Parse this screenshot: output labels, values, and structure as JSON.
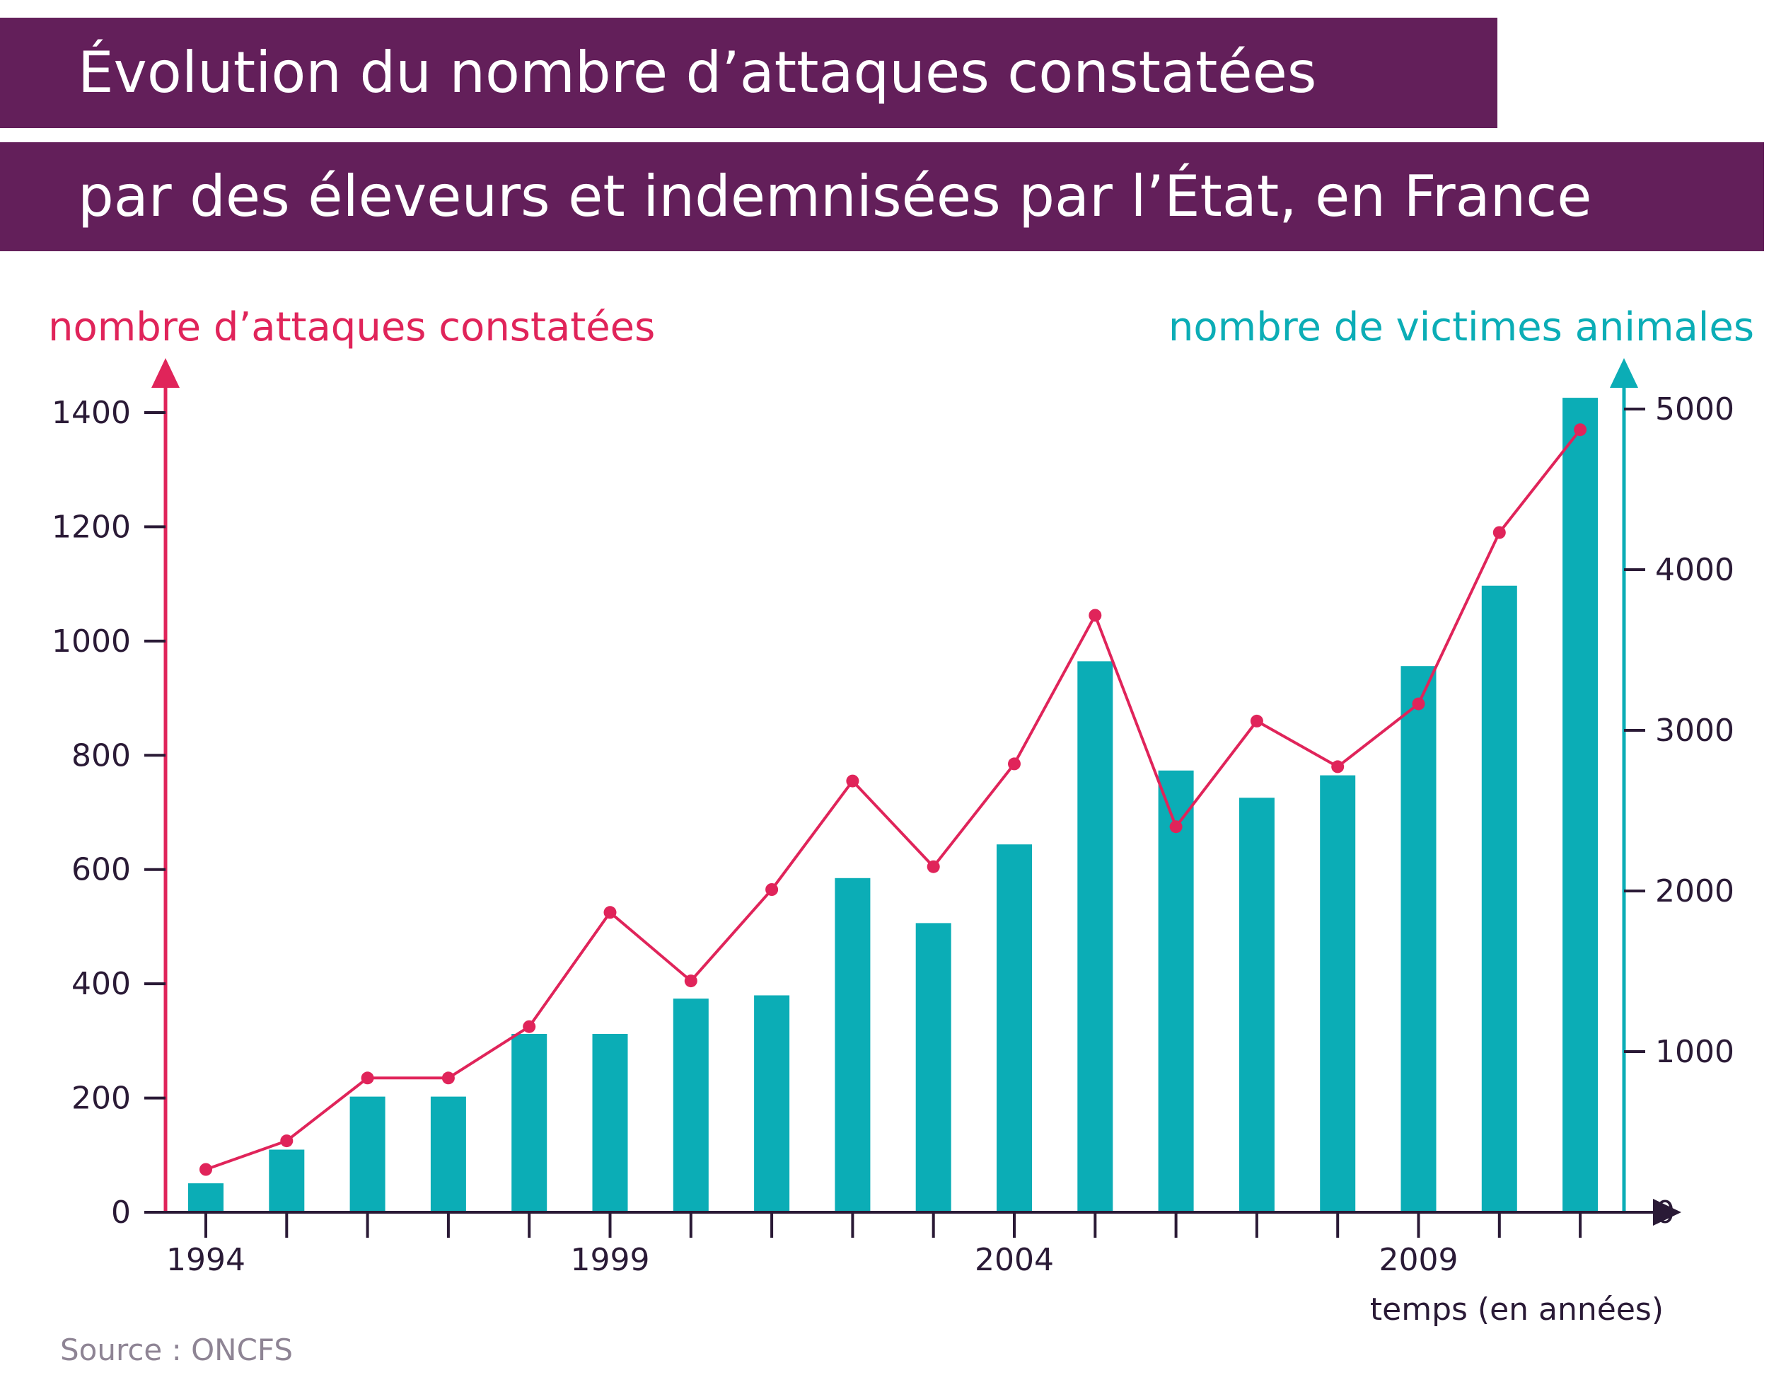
{
  "title": {
    "line1": "Évolution du nombre d’attaques constatées",
    "line2": "par des éleveurs et indemnisées par l’État, en France"
  },
  "colors": {
    "title_band": "#631f5a",
    "attacks": "#e0245a",
    "victims": "#0badb6",
    "axis_dark": "#2a1a36",
    "source": "#8e8494"
  },
  "source": "Source : ONCFS",
  "chart_data": {
    "type": "bar",
    "combo": "bars = nombre de victimes animales (right axis); line with markers = nombre d’attaques constatées (left axis)",
    "x": [
      1994,
      1995,
      1996,
      1997,
      1998,
      1999,
      2000,
      2001,
      2002,
      2003,
      2004,
      2005,
      2006,
      2007,
      2008,
      2009,
      2010,
      2011
    ],
    "x_tick_labels": [
      "1994",
      "1999",
      "2004",
      "2009"
    ],
    "xlabel": "temps (en années)",
    "ylabel_left": "nombre d’attaques constatées",
    "ylabel_right": "nombre de victimes animales",
    "ylim_left": [
      0,
      1400
    ],
    "ylim_right": [
      0,
      5000
    ],
    "yticks_left": [
      0,
      200,
      400,
      600,
      800,
      1000,
      1200,
      1400
    ],
    "yticks_right": [
      0,
      1000,
      2000,
      3000,
      4000,
      5000
    ],
    "series": [
      {
        "name": "nombre de victimes animales",
        "type": "bar",
        "axis": "right",
        "values": [
          180,
          390,
          720,
          720,
          1110,
          1110,
          1330,
          1350,
          2080,
          1800,
          2290,
          3430,
          2750,
          2580,
          2720,
          3400,
          3900,
          5070
        ]
      },
      {
        "name": "nombre d’attaques constatées",
        "type": "line",
        "axis": "left",
        "values": [
          75,
          125,
          235,
          235,
          325,
          525,
          405,
          565,
          755,
          605,
          785,
          1045,
          675,
          860,
          780,
          890,
          1190,
          1370
        ]
      }
    ],
    "grid": false,
    "legend": "none"
  }
}
